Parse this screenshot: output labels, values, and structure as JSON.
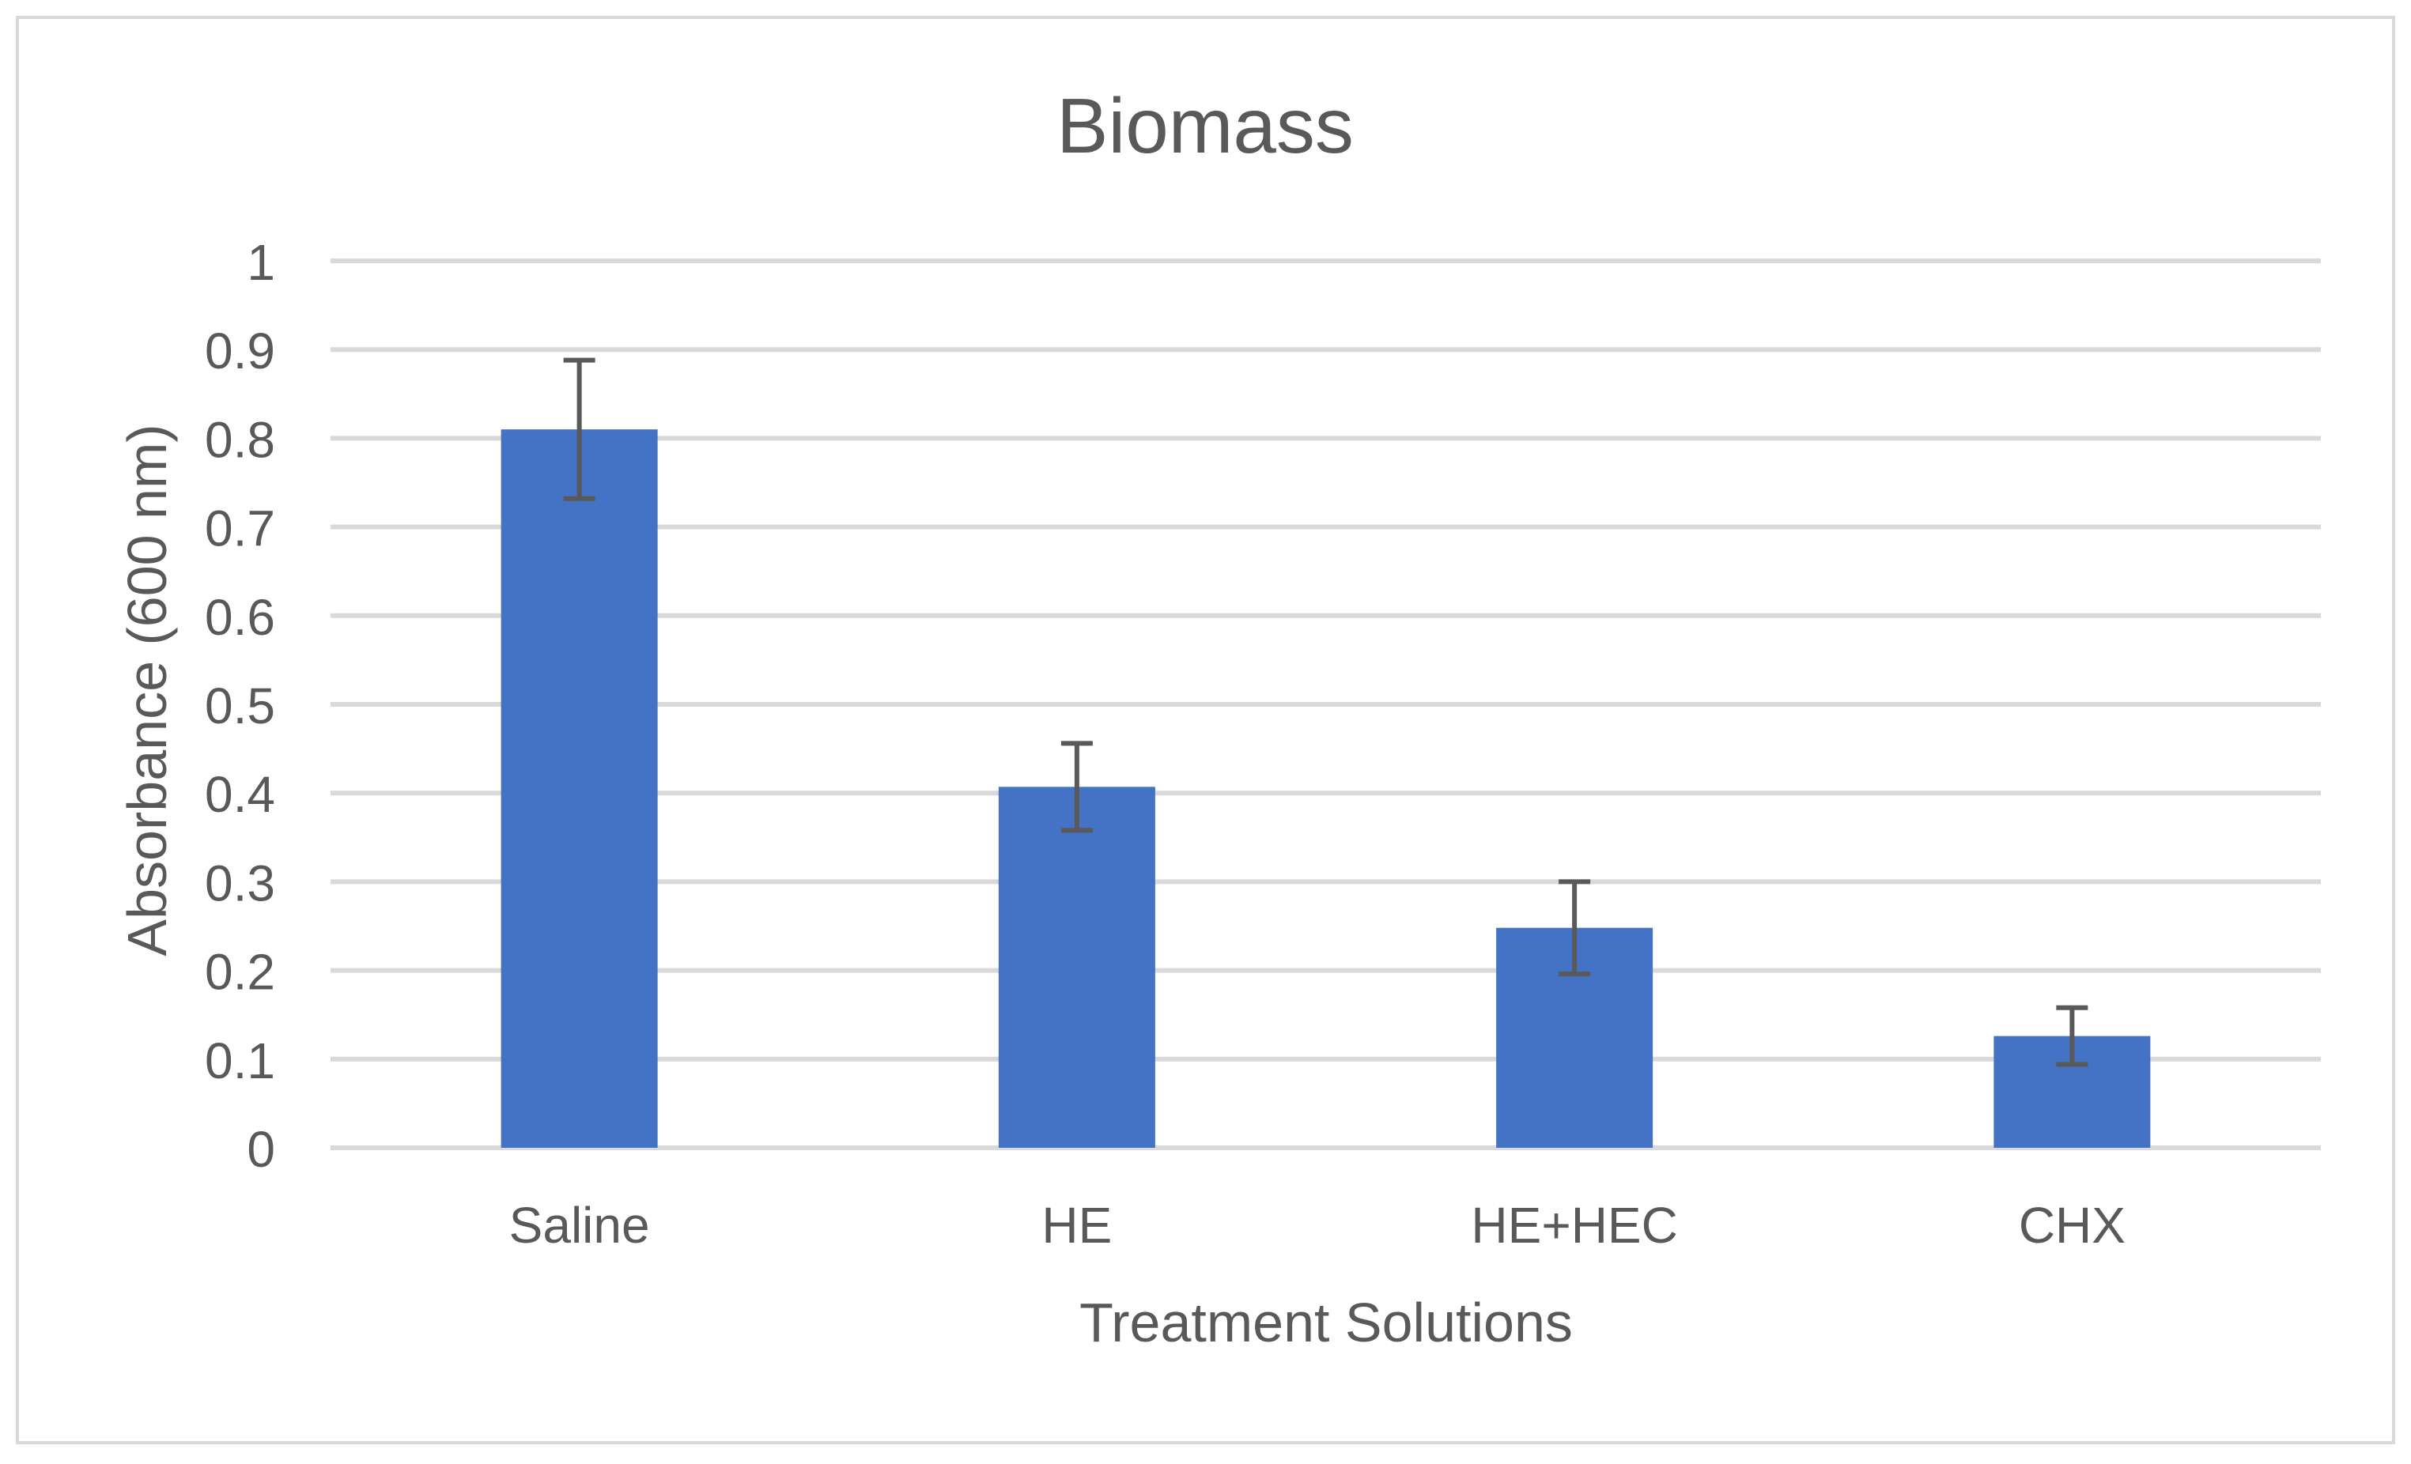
{
  "chart_data": {
    "type": "bar",
    "title": "Biomass",
    "xlabel": "Treatment Solutions",
    "ylabel": "Absorbance (600 nm)",
    "categories": [
      "Saline",
      "HE",
      "HE+HEC",
      "CHX"
    ],
    "values": [
      0.81,
      0.407,
      0.248,
      0.126
    ],
    "error": [
      0.078,
      0.049,
      0.052,
      0.032
    ],
    "ylim": [
      0,
      1
    ],
    "yticks": [
      "0",
      "0.1",
      "0.2",
      "0.3",
      "0.4",
      "0.5",
      "0.6",
      "0.7",
      "0.8",
      "0.9",
      "1"
    ],
    "grid": true,
    "legend": "none",
    "bar_color": "#4472C4",
    "error_bar_color": "#595959",
    "gridline_color": "#D9D9D9",
    "text_color": "#595959",
    "border_color": "#D9D9D9"
  }
}
